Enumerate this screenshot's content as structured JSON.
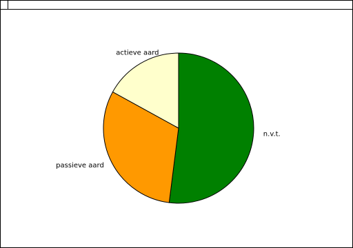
{
  "chart_data": {
    "type": "pie",
    "title": "",
    "start_angle_deg": 0,
    "direction": "clockwise",
    "slices": [
      {
        "label": "n.v.t.",
        "value": 52,
        "color": "#008000"
      },
      {
        "label": "passieve aard",
        "value": 31,
        "color": "#FF9900"
      },
      {
        "label": "actieve aard",
        "value": 17,
        "color": "#FFFFCC"
      }
    ],
    "legend": "none",
    "outline_color": "#000000"
  }
}
